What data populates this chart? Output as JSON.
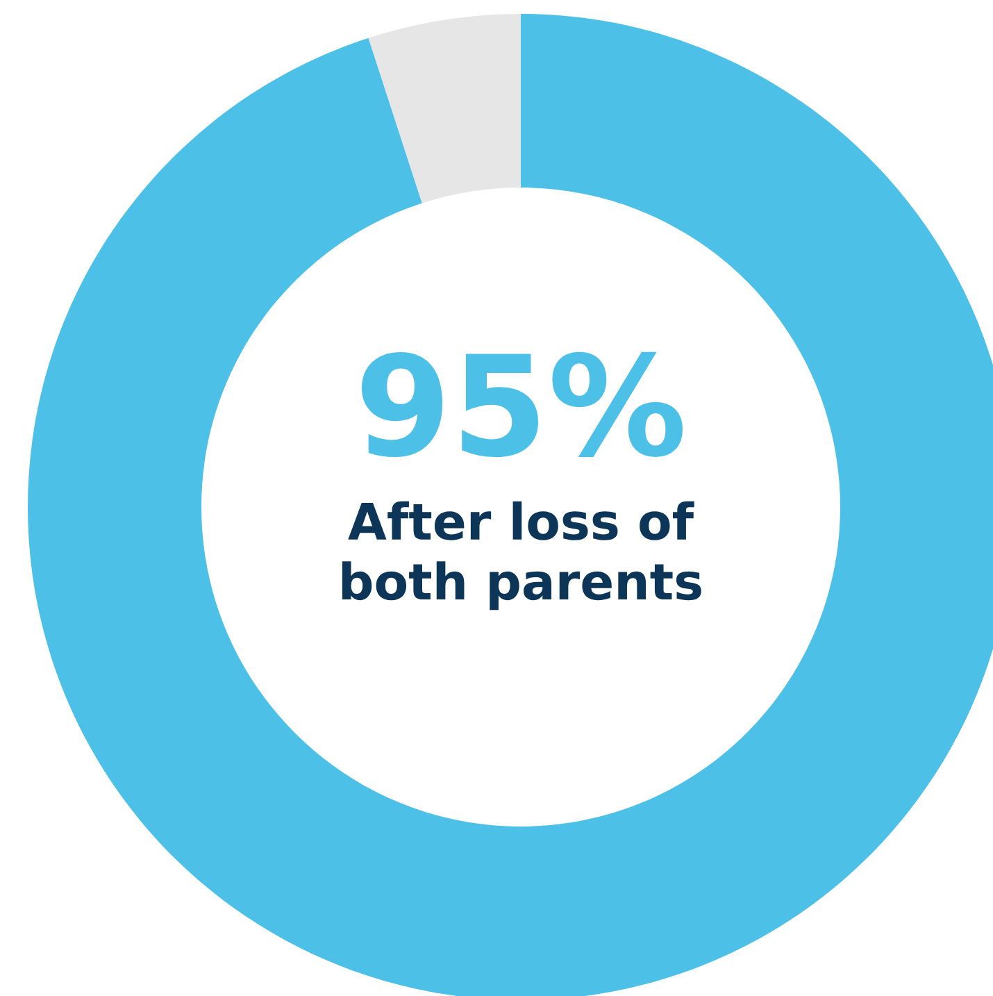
{
  "chart_data": {
    "type": "donut",
    "categories": [
      null,
      null
    ],
    "values": [
      95,
      5
    ],
    "colors": [
      "#4dc0e8",
      "#e6e6e6"
    ],
    "value_labels": [
      "95%",
      null
    ],
    "annotations": [
      "After loss of both parents"
    ]
  }
}
